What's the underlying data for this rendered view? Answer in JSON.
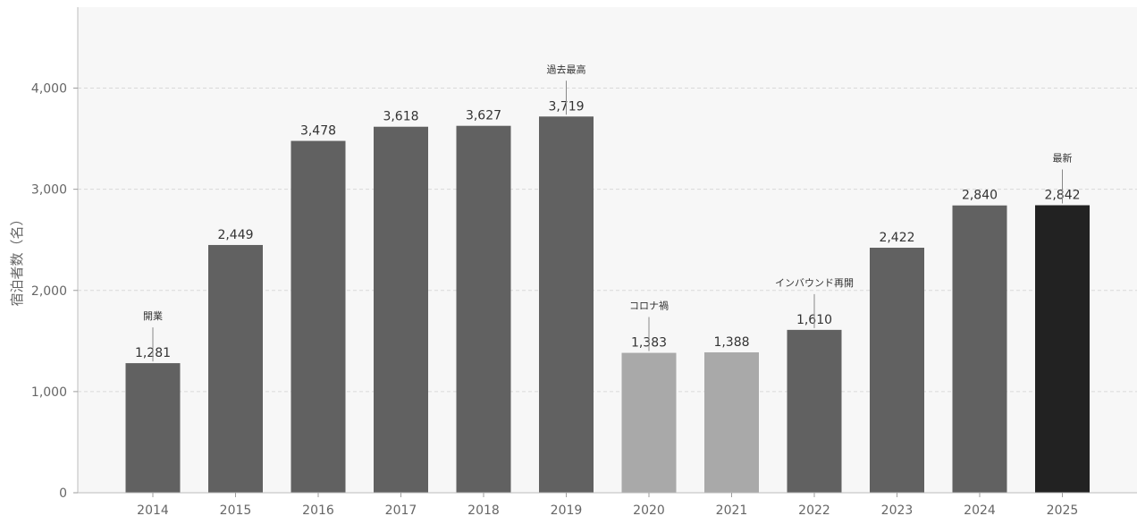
{
  "chart_data": {
    "type": "bar",
    "categories": [
      "2014",
      "2015",
      "2016",
      "2017",
      "2018",
      "2019",
      "2020",
      "2021",
      "2022",
      "2023",
      "2024",
      "2025"
    ],
    "values": [
      1281,
      2449,
      3478,
      3618,
      3627,
      3719,
      1383,
      1388,
      1610,
      2422,
      2840,
      2842
    ],
    "value_labels": [
      "1,281",
      "2,449",
      "3,478",
      "3,618",
      "3,627",
      "3,719",
      "1,383",
      "1,388",
      "1,610",
      "2,422",
      "2,840",
      "2,842"
    ],
    "bar_colors": [
      "#616161",
      "#616161",
      "#616161",
      "#616161",
      "#616161",
      "#616161",
      "#a9a9a9",
      "#a9a9a9",
      "#616161",
      "#616161",
      "#616161",
      "#222222"
    ],
    "ylabel": "宿泊者数（名）",
    "ylim": [
      0,
      4800
    ],
    "yticks": [
      0,
      1000,
      2000,
      3000,
      4000
    ],
    "ytick_labels": [
      "0",
      "1,000",
      "2,000",
      "3,000",
      "4,000"
    ],
    "grid": true,
    "annotations": [
      {
        "category": "2014",
        "text": "開業"
      },
      {
        "category": "2019",
        "text": "過去最高"
      },
      {
        "category": "2020",
        "text": "コロナ禍"
      },
      {
        "category": "2022",
        "text": "インバウンド再開"
      },
      {
        "category": "2025",
        "text": "最新"
      }
    ]
  }
}
